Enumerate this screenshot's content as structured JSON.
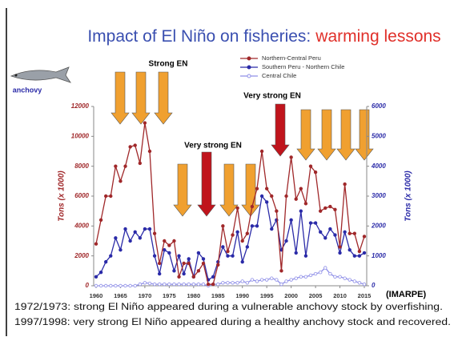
{
  "chart_data": {
    "type": "line",
    "title": "Impact of El Niño on fisheries:",
    "title_emphasis": "warming lessons",
    "image_label": "anchovy",
    "source": "(IMARPE)",
    "annotations": [
      "Strong EN",
      "Very strong EN",
      "Very strong EN"
    ],
    "ylabel": "Tons (x 1000)",
    "y2label": "Tons (x 1000)",
    "footnotes": [
      "1972/1973: strong El Niño appeared during a vulnerable anchovy stock by overfishing.",
      "1997/1998: very strong El Niño appeared during a healthy anchovy stock and recovered."
    ],
    "x": [
      1960,
      1961,
      1962,
      1963,
      1964,
      1965,
      1966,
      1967,
      1968,
      1969,
      1970,
      1971,
      1972,
      1973,
      1974,
      1975,
      1976,
      1977,
      1978,
      1979,
      1980,
      1981,
      1982,
      1983,
      1984,
      1985,
      1986,
      1987,
      1988,
      1989,
      1990,
      1991,
      1992,
      1993,
      1994,
      1995,
      1996,
      1997,
      1998,
      1999,
      2000,
      2001,
      2002,
      2003,
      2004,
      2005,
      2006,
      2007,
      2008,
      2009,
      2010,
      2011,
      2012,
      2013,
      2014,
      2015
    ],
    "xlim": [
      1960,
      2015
    ],
    "xticks": [
      1960,
      1965,
      1970,
      1975,
      1980,
      1985,
      1990,
      1995,
      2000,
      2005,
      2010,
      2015
    ],
    "ylim": [
      0,
      12000
    ],
    "yticks": [
      0,
      2000,
      4000,
      6000,
      8000,
      10000,
      12000
    ],
    "y2lim": [
      0,
      6000
    ],
    "y2ticks": [
      0,
      1000,
      2000,
      3000,
      4000,
      5000,
      6000
    ],
    "series": [
      {
        "name": "Northern-Central Peru",
        "color": "#a0282a",
        "marker": "filled",
        "values": [
          2800,
          4400,
          6000,
          6000,
          8000,
          7000,
          8000,
          9300,
          9400,
          8200,
          10900,
          9000,
          3500,
          1500,
          3000,
          2700,
          3000,
          600,
          1500,
          1500,
          600,
          1000,
          1500,
          100,
          100,
          1400,
          4000,
          2300,
          3400,
          5200,
          3000,
          3500,
          5300,
          6500,
          9000,
          6500,
          6000,
          5000,
          1000,
          6000,
          8600,
          5800,
          6500,
          5500,
          8000,
          7600,
          5000,
          5200,
          5300,
          5100,
          2600,
          6800,
          3500,
          3500,
          2300,
          3300
        ]
      },
      {
        "name": "Southern Peru - Northern Chile",
        "color": "#2b2ba8",
        "marker": "filled",
        "axis": "y2",
        "values": [
          300,
          450,
          800,
          1000,
          1600,
          1200,
          1900,
          1500,
          1800,
          1600,
          1900,
          1900,
          1000,
          400,
          1200,
          1100,
          500,
          1000,
          400,
          900,
          300,
          1100,
          900,
          200,
          300,
          800,
          1300,
          1000,
          1000,
          1800,
          800,
          1300,
          2000,
          2000,
          3000,
          2800,
          1900,
          2200,
          1200,
          1500,
          2200,
          1100,
          2500,
          1000,
          2100,
          2100,
          1800,
          1600,
          1900,
          1700,
          1100,
          1800,
          1200,
          1000,
          1000,
          1100
        ]
      },
      {
        "name": "Central Chile",
        "color": "#8f8fe8",
        "marker": "open",
        "axis": "y2",
        "values": [
          0,
          0,
          0,
          0,
          0,
          0,
          0,
          0,
          0,
          50,
          100,
          80,
          50,
          50,
          50,
          50,
          50,
          50,
          50,
          50,
          50,
          50,
          50,
          0,
          50,
          50,
          100,
          100,
          100,
          100,
          150,
          100,
          200,
          150,
          200,
          200,
          250,
          200,
          50,
          150,
          200,
          250,
          300,
          300,
          350,
          400,
          450,
          600,
          400,
          300,
          300,
          250,
          200,
          150,
          100,
          50
        ]
      }
    ]
  }
}
